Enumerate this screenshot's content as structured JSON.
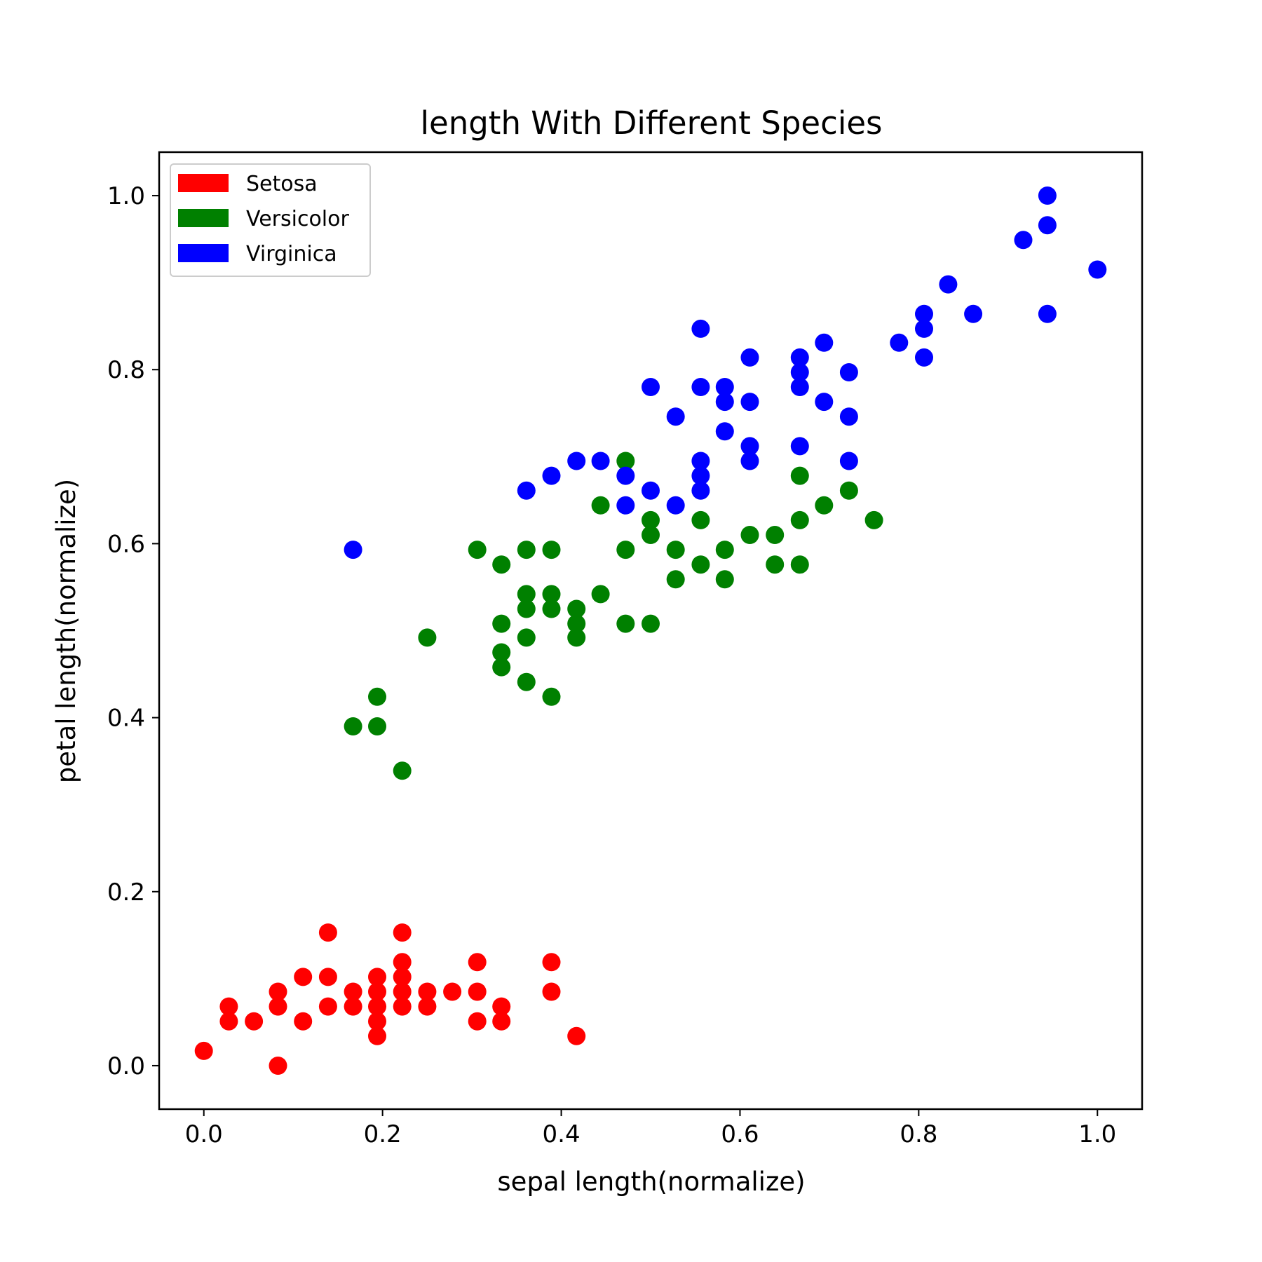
{
  "chart_data": {
    "type": "scatter",
    "title": "length With Different Species",
    "xlabel": "sepal length(normalize)",
    "ylabel": "petal length(normalize)",
    "xlim": [
      -0.05,
      1.05
    ],
    "ylim": [
      -0.05,
      1.05
    ],
    "xticks": [
      0.0,
      0.2,
      0.4,
      0.6,
      0.8,
      1.0
    ],
    "yticks": [
      0.0,
      0.2,
      0.4,
      0.6,
      0.8,
      1.0
    ],
    "xtick_labels": [
      "0.0",
      "0.2",
      "0.4",
      "0.6",
      "0.8",
      "1.0"
    ],
    "ytick_labels": [
      "0.0",
      "0.2",
      "0.4",
      "0.6",
      "0.8",
      "1.0"
    ],
    "grid": false,
    "legend_position": "top-left",
    "series": [
      {
        "name": "Setosa",
        "color": "#ff0000",
        "points": [
          [
            0.0,
            0.017
          ],
          [
            0.028,
            0.051
          ],
          [
            0.028,
            0.068
          ],
          [
            0.056,
            0.051
          ],
          [
            0.083,
            0.0
          ],
          [
            0.083,
            0.068
          ],
          [
            0.083,
            0.085
          ],
          [
            0.111,
            0.051
          ],
          [
            0.111,
            0.102
          ],
          [
            0.139,
            0.068
          ],
          [
            0.139,
            0.102
          ],
          [
            0.139,
            0.153
          ],
          [
            0.167,
            0.068
          ],
          [
            0.167,
            0.085
          ],
          [
            0.194,
            0.034
          ],
          [
            0.194,
            0.051
          ],
          [
            0.194,
            0.068
          ],
          [
            0.194,
            0.085
          ],
          [
            0.194,
            0.102
          ],
          [
            0.222,
            0.068
          ],
          [
            0.222,
            0.085
          ],
          [
            0.222,
            0.102
          ],
          [
            0.222,
            0.119
          ],
          [
            0.222,
            0.153
          ],
          [
            0.25,
            0.068
          ],
          [
            0.25,
            0.085
          ],
          [
            0.278,
            0.085
          ],
          [
            0.306,
            0.051
          ],
          [
            0.306,
            0.085
          ],
          [
            0.306,
            0.119
          ],
          [
            0.333,
            0.051
          ],
          [
            0.333,
            0.068
          ],
          [
            0.389,
            0.085
          ],
          [
            0.389,
            0.119
          ],
          [
            0.417,
            0.034
          ]
        ]
      },
      {
        "name": "Versicolor",
        "color": "#008000",
        "points": [
          [
            0.167,
            0.39
          ],
          [
            0.194,
            0.39
          ],
          [
            0.194,
            0.424
          ],
          [
            0.222,
            0.339
          ],
          [
            0.25,
            0.492
          ],
          [
            0.306,
            0.593
          ],
          [
            0.333,
            0.458
          ],
          [
            0.333,
            0.475
          ],
          [
            0.333,
            0.508
          ],
          [
            0.333,
            0.576
          ],
          [
            0.361,
            0.441
          ],
          [
            0.361,
            0.492
          ],
          [
            0.361,
            0.525
          ],
          [
            0.361,
            0.542
          ],
          [
            0.361,
            0.593
          ],
          [
            0.389,
            0.424
          ],
          [
            0.389,
            0.525
          ],
          [
            0.389,
            0.542
          ],
          [
            0.389,
            0.593
          ],
          [
            0.417,
            0.492
          ],
          [
            0.417,
            0.508
          ],
          [
            0.417,
            0.525
          ],
          [
            0.444,
            0.542
          ],
          [
            0.444,
            0.644
          ],
          [
            0.472,
            0.508
          ],
          [
            0.472,
            0.593
          ],
          [
            0.472,
            0.695
          ],
          [
            0.5,
            0.508
          ],
          [
            0.5,
            0.61
          ],
          [
            0.5,
            0.627
          ],
          [
            0.528,
            0.559
          ],
          [
            0.528,
            0.593
          ],
          [
            0.556,
            0.576
          ],
          [
            0.556,
            0.627
          ],
          [
            0.583,
            0.559
          ],
          [
            0.583,
            0.593
          ],
          [
            0.611,
            0.61
          ],
          [
            0.639,
            0.576
          ],
          [
            0.639,
            0.61
          ],
          [
            0.667,
            0.576
          ],
          [
            0.667,
            0.627
          ],
          [
            0.667,
            0.678
          ],
          [
            0.694,
            0.644
          ],
          [
            0.722,
            0.661
          ],
          [
            0.75,
            0.627
          ]
        ]
      },
      {
        "name": "Virginica",
        "color": "#0000ff",
        "points": [
          [
            0.167,
            0.593
          ],
          [
            0.361,
            0.661
          ],
          [
            0.389,
            0.678
          ],
          [
            0.417,
            0.695
          ],
          [
            0.444,
            0.695
          ],
          [
            0.472,
            0.644
          ],
          [
            0.472,
            0.678
          ],
          [
            0.5,
            0.661
          ],
          [
            0.5,
            0.78
          ],
          [
            0.528,
            0.644
          ],
          [
            0.528,
            0.746
          ],
          [
            0.556,
            0.661
          ],
          [
            0.556,
            0.678
          ],
          [
            0.556,
            0.695
          ],
          [
            0.556,
            0.78
          ],
          [
            0.556,
            0.847
          ],
          [
            0.583,
            0.729
          ],
          [
            0.583,
            0.763
          ],
          [
            0.583,
            0.78
          ],
          [
            0.611,
            0.695
          ],
          [
            0.611,
            0.712
          ],
          [
            0.611,
            0.763
          ],
          [
            0.611,
            0.814
          ],
          [
            0.667,
            0.712
          ],
          [
            0.667,
            0.78
          ],
          [
            0.667,
            0.797
          ],
          [
            0.667,
            0.814
          ],
          [
            0.694,
            0.763
          ],
          [
            0.694,
            0.831
          ],
          [
            0.722,
            0.695
          ],
          [
            0.722,
            0.746
          ],
          [
            0.722,
            0.797
          ],
          [
            0.778,
            0.831
          ],
          [
            0.806,
            0.814
          ],
          [
            0.806,
            0.847
          ],
          [
            0.806,
            0.864
          ],
          [
            0.833,
            0.898
          ],
          [
            0.861,
            0.864
          ],
          [
            0.917,
            0.949
          ],
          [
            0.944,
            0.864
          ],
          [
            0.944,
            0.966
          ],
          [
            0.944,
            1.0
          ],
          [
            1.0,
            0.915
          ]
        ]
      }
    ]
  }
}
